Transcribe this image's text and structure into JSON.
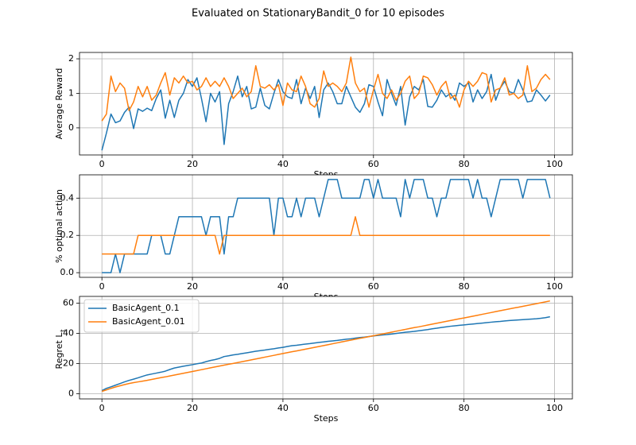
{
  "title": "Evaluated on StationaryBandit_0 for 10 episodes",
  "chart_data": [
    {
      "type": "line",
      "xlabel": "Steps",
      "ylabel": "Average Reward",
      "x": [
        0,
        1,
        2,
        3,
        4,
        5,
        6,
        7,
        8,
        9,
        10,
        11,
        12,
        13,
        14,
        15,
        16,
        17,
        18,
        19,
        20,
        21,
        22,
        23,
        24,
        25,
        26,
        27,
        28,
        29,
        30,
        31,
        32,
        33,
        34,
        35,
        36,
        37,
        38,
        39,
        40,
        41,
        42,
        43,
        44,
        45,
        46,
        47,
        48,
        49,
        50,
        51,
        52,
        53,
        54,
        55,
        56,
        57,
        58,
        59,
        60,
        61,
        62,
        63,
        64,
        65,
        66,
        67,
        68,
        69,
        70,
        71,
        72,
        73,
        74,
        75,
        76,
        77,
        78,
        79,
        80,
        81,
        82,
        83,
        84,
        85,
        86,
        87,
        88,
        89,
        90,
        91,
        92,
        93,
        94,
        95,
        96,
        97,
        98,
        99
      ],
      "series": [
        {
          "name": "BasicAgent_0.1",
          "color": "#1f77b4",
          "values": [
            -0.65,
            -0.15,
            0.4,
            0.15,
            0.2,
            0.45,
            0.6,
            -0.02,
            0.55,
            0.48,
            0.57,
            0.5,
            0.85,
            1.1,
            0.28,
            0.8,
            0.3,
            0.8,
            1.0,
            1.4,
            1.2,
            1.45,
            0.85,
            0.18,
            1.0,
            0.75,
            1.05,
            -0.48,
            0.7,
            1.05,
            1.5,
            0.9,
            1.2,
            0.55,
            0.6,
            1.15,
            0.65,
            0.55,
            1.0,
            1.4,
            1.05,
            0.9,
            0.85,
            1.4,
            0.7,
            1.15,
            0.85,
            1.2,
            0.3,
            1.1,
            1.3,
            1.05,
            0.7,
            0.7,
            1.2,
            0.9,
            0.6,
            0.45,
            0.7,
            1.25,
            1.2,
            0.75,
            0.35,
            1.4,
            1.0,
            0.65,
            1.2,
            0.08,
            0.9,
            1.2,
            1.1,
            1.4,
            0.62,
            0.6,
            0.8,
            1.1,
            0.9,
            1.0,
            0.8,
            1.3,
            1.2,
            1.3,
            0.75,
            1.1,
            0.85,
            1.05,
            1.55,
            0.8,
            1.15,
            1.35,
            1.05,
            1.0,
            1.4,
            1.1,
            0.75,
            0.78,
            1.1,
            0.95,
            0.78,
            0.95
          ]
        },
        {
          "name": "BasicAgent_0.01",
          "color": "#ff7f0e",
          "values": [
            0.2,
            0.4,
            1.5,
            1.05,
            1.3,
            1.15,
            0.5,
            0.75,
            1.2,
            0.9,
            1.2,
            0.8,
            0.95,
            1.3,
            1.6,
            0.95,
            1.45,
            1.3,
            1.5,
            1.3,
            1.35,
            1.1,
            1.2,
            1.45,
            1.2,
            1.35,
            1.2,
            1.45,
            1.2,
            0.85,
            1.0,
            1.15,
            0.9,
            1.05,
            1.8,
            1.2,
            1.15,
            1.25,
            1.1,
            1.25,
            0.65,
            1.3,
            1.1,
            1.05,
            1.5,
            1.2,
            0.7,
            0.6,
            0.85,
            1.65,
            1.2,
            1.3,
            1.2,
            1.05,
            1.3,
            2.05,
            1.3,
            1.05,
            1.15,
            0.6,
            1.1,
            1.55,
            1.0,
            0.85,
            1.1,
            0.8,
            1.0,
            1.35,
            1.5,
            0.85,
            1.0,
            1.5,
            1.45,
            1.25,
            0.95,
            1.2,
            1.35,
            0.85,
            0.95,
            0.6,
            1.1,
            1.35,
            1.2,
            1.35,
            1.6,
            1.55,
            0.75,
            1.1,
            1.15,
            1.45,
            0.95,
            1.0,
            0.85,
            0.95,
            1.8,
            1.05,
            1.15,
            1.4,
            1.55,
            1.4
          ]
        }
      ],
      "xlim": [
        -4.95,
        103.95
      ],
      "xticks": [
        0,
        20,
        40,
        60,
        80,
        100
      ],
      "ylim": [
        -0.785,
        2.185
      ],
      "yticks": [
        0,
        1,
        2
      ],
      "grid": true
    },
    {
      "type": "line",
      "xlabel": "Steps",
      "ylabel": "% optimal action",
      "x": [
        0,
        1,
        2,
        3,
        4,
        5,
        6,
        7,
        8,
        9,
        10,
        11,
        12,
        13,
        14,
        15,
        16,
        17,
        18,
        19,
        20,
        21,
        22,
        23,
        24,
        25,
        26,
        27,
        28,
        29,
        30,
        31,
        32,
        33,
        34,
        35,
        36,
        37,
        38,
        39,
        40,
        41,
        42,
        43,
        44,
        45,
        46,
        47,
        48,
        49,
        50,
        51,
        52,
        53,
        54,
        55,
        56,
        57,
        58,
        59,
        60,
        61,
        62,
        63,
        64,
        65,
        66,
        67,
        68,
        69,
        70,
        71,
        72,
        73,
        74,
        75,
        76,
        77,
        78,
        79,
        80,
        81,
        82,
        83,
        84,
        85,
        86,
        87,
        88,
        89,
        90,
        91,
        92,
        93,
        94,
        95,
        96,
        97,
        98,
        99
      ],
      "series": [
        {
          "name": "BasicAgent_0.1",
          "color": "#1f77b4",
          "values": [
            0,
            0,
            0,
            0.1,
            0,
            0.1,
            0.1,
            0.1,
            0.1,
            0.1,
            0.1,
            0.2,
            0.2,
            0.2,
            0.1,
            0.1,
            0.2,
            0.3,
            0.3,
            0.3,
            0.3,
            0.3,
            0.3,
            0.2,
            0.3,
            0.3,
            0.3,
            0.1,
            0.3,
            0.3,
            0.4,
            0.4,
            0.4,
            0.4,
            0.4,
            0.4,
            0.4,
            0.4,
            0.2,
            0.4,
            0.4,
            0.3,
            0.3,
            0.4,
            0.3,
            0.4,
            0.4,
            0.4,
            0.3,
            0.4,
            0.5,
            0.5,
            0.5,
            0.4,
            0.4,
            0.4,
            0.4,
            0.4,
            0.5,
            0.5,
            0.4,
            0.5,
            0.4,
            0.4,
            0.4,
            0.4,
            0.3,
            0.5,
            0.4,
            0.5,
            0.5,
            0.5,
            0.4,
            0.4,
            0.3,
            0.4,
            0.4,
            0.5,
            0.5,
            0.5,
            0.5,
            0.5,
            0.4,
            0.5,
            0.4,
            0.4,
            0.3,
            0.4,
            0.5,
            0.5,
            0.5,
            0.5,
            0.5,
            0.4,
            0.5,
            0.5,
            0.5,
            0.5,
            0.5,
            0.4
          ]
        },
        {
          "name": "BasicAgent_0.01",
          "color": "#ff7f0e",
          "values": [
            0.1,
            0.1,
            0.1,
            0.1,
            0.1,
            0.1,
            0.1,
            0.1,
            0.2,
            0.2,
            0.2,
            0.2,
            0.2,
            0.2,
            0.2,
            0.2,
            0.2,
            0.2,
            0.2,
            0.2,
            0.2,
            0.2,
            0.2,
            0.2,
            0.2,
            0.2,
            0.1,
            0.2,
            0.2,
            0.2,
            0.2,
            0.2,
            0.2,
            0.2,
            0.2,
            0.2,
            0.2,
            0.2,
            0.2,
            0.2,
            0.2,
            0.2,
            0.2,
            0.2,
            0.2,
            0.2,
            0.2,
            0.2,
            0.2,
            0.2,
            0.2,
            0.2,
            0.2,
            0.2,
            0.2,
            0.2,
            0.3,
            0.2,
            0.2,
            0.2,
            0.2,
            0.2,
            0.2,
            0.2,
            0.2,
            0.2,
            0.2,
            0.2,
            0.2,
            0.2,
            0.2,
            0.2,
            0.2,
            0.2,
            0.2,
            0.2,
            0.2,
            0.2,
            0.2,
            0.2,
            0.2,
            0.2,
            0.2,
            0.2,
            0.2,
            0.2,
            0.2,
            0.2,
            0.2,
            0.2,
            0.2,
            0.2,
            0.2,
            0.2,
            0.2,
            0.2,
            0.2,
            0.2,
            0.2,
            0.2
          ]
        }
      ],
      "xlim": [
        -4.95,
        103.95
      ],
      "xticks": [
        0,
        20,
        40,
        60,
        80,
        100
      ],
      "ylim": [
        -0.025,
        0.525
      ],
      "yticks": [
        {
          "value": 0,
          "label": "0.0"
        },
        0.2,
        0.4
      ],
      "grid": true
    },
    {
      "type": "line",
      "xlabel": "Steps",
      "ylabel": "Regret L",
      "ylabel_subscript": "t",
      "x": [
        0,
        1,
        2,
        3,
        4,
        5,
        6,
        7,
        8,
        9,
        10,
        11,
        12,
        13,
        14,
        15,
        16,
        17,
        18,
        19,
        20,
        21,
        22,
        23,
        24,
        25,
        26,
        27,
        28,
        29,
        30,
        31,
        32,
        33,
        34,
        35,
        36,
        37,
        38,
        39,
        40,
        41,
        42,
        43,
        44,
        45,
        46,
        47,
        48,
        49,
        50,
        51,
        52,
        53,
        54,
        55,
        56,
        57,
        58,
        59,
        60,
        61,
        62,
        63,
        64,
        65,
        66,
        67,
        68,
        69,
        70,
        71,
        72,
        73,
        74,
        75,
        76,
        77,
        78,
        79,
        80,
        81,
        82,
        83,
        84,
        85,
        86,
        87,
        88,
        89,
        90,
        91,
        92,
        93,
        94,
        95,
        96,
        97,
        98,
        99
      ],
      "series": [
        {
          "name": "BasicAgent_0.1",
          "color": "#1f77b4",
          "values": [
            2,
            3.5,
            4.5,
            5.6,
            6.7,
            7.8,
            8.8,
            9.6,
            10.5,
            11.5,
            12.4,
            13,
            13.6,
            14.2,
            14.9,
            16,
            17,
            17.6,
            18.2,
            18.7,
            19.2,
            19.8,
            20.3,
            21.2,
            22,
            22.6,
            23.4,
            24.6,
            25.1,
            25.7,
            26.1,
            26.6,
            27.1,
            27.6,
            28.1,
            28.5,
            28.9,
            29.4,
            29.8,
            30.3,
            30.7,
            31.3,
            31.8,
            32.1,
            32.5,
            32.9,
            33.2,
            33.6,
            34,
            34.3,
            34.7,
            35,
            35.3,
            35.7,
            36.1,
            36.4,
            36.8,
            37.2,
            37.5,
            37.9,
            38.3,
            38.6,
            38.9,
            39.2,
            39.5,
            39.9,
            40.3,
            40.7,
            41,
            41.3,
            41.7,
            42.1,
            42.5,
            43,
            43.4,
            43.9,
            44.3,
            44.7,
            45,
            45.3,
            45.6,
            45.9,
            46.2,
            46.5,
            46.8,
            47.1,
            47.4,
            47.7,
            47.9,
            48.2,
            48.5,
            48.7,
            48.9,
            49.1,
            49.3,
            49.5,
            49.7,
            50,
            50.4,
            51
          ]
        },
        {
          "name": "BasicAgent_0.01",
          "color": "#ff7f0e",
          "values": [
            1.5,
            2.5,
            3.5,
            4.4,
            5.2,
            6,
            6.7,
            7.3,
            7.8,
            8.3,
            8.8,
            9.4,
            10.0,
            10.6,
            11.1,
            11.7,
            12.3,
            12.9,
            13.5,
            14.1,
            14.7,
            15.3,
            15.9,
            16.5,
            17.1,
            17.7,
            18.3,
            18.9,
            19.5,
            20.0,
            20.6,
            21.2,
            21.8,
            22.4,
            23.0,
            23.6,
            24.2,
            24.8,
            25.4,
            26.0,
            26.6,
            27.2,
            27.8,
            28.3,
            28.9,
            29.5,
            30.1,
            30.7,
            31.3,
            31.9,
            32.5,
            33.1,
            33.7,
            34.3,
            34.9,
            35.5,
            36.1,
            36.7,
            37.2,
            37.8,
            38.4,
            39.0,
            39.6,
            40.2,
            40.8,
            41.4,
            42.0,
            42.6,
            43.2,
            43.8,
            44.3,
            44.9,
            45.5,
            46.1,
            46.7,
            47.3,
            47.9,
            48.5,
            49.1,
            49.7,
            50.2,
            50.8,
            51.4,
            52.0,
            52.6,
            53.2,
            53.8,
            54.4,
            55.0,
            55.6,
            56.2,
            56.8,
            57.3,
            57.9,
            58.5,
            59.1,
            59.7,
            60.3,
            60.9,
            61.5
          ]
        }
      ],
      "xlim": [
        -4.95,
        103.95
      ],
      "xticks": [
        0,
        20,
        40,
        60,
        80,
        100
      ],
      "ylim": [
        -3.5,
        64.5
      ],
      "yticks": [
        0,
        20,
        40,
        60
      ],
      "grid": true,
      "legend": "upper left"
    }
  ]
}
